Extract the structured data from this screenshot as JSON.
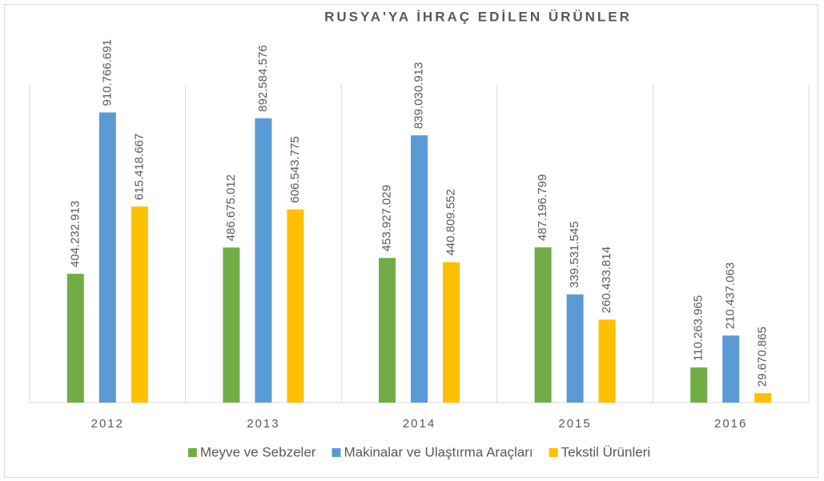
{
  "chart_data": {
    "type": "bar",
    "title": "RUSYA'YA İHRAÇ EDİLEN ÜRÜNLER",
    "categories": [
      "2012",
      "2013",
      "2014",
      "2015",
      "2016"
    ],
    "series": [
      {
        "name": "Meyve ve Sebzeler",
        "color": "#70ad47",
        "values": [
          404232913,
          486675012,
          453927029,
          487196799,
          110263965
        ],
        "value_labels": [
          "404.232.913",
          "486.675.012",
          "453.927.029",
          "487.196.799",
          "110.263.965"
        ]
      },
      {
        "name": "Makinalar ve Ulaştırma Araçları",
        "color": "#5b9bd5",
        "values": [
          910766691,
          892584576,
          839030913,
          339531545,
          210437063
        ],
        "value_labels": [
          "910.766.691",
          "892.584.576",
          "839.030.913",
          "339.531.545",
          "210.437.063"
        ]
      },
      {
        "name": "Tekstil Ürünleri",
        "color": "#ffc000",
        "values": [
          615418667,
          606543775,
          440809552,
          260433814,
          29670865
        ],
        "value_labels": [
          "615.418.667",
          "606.543.775",
          "440.809.552",
          "260.433.814",
          "29.670.865"
        ]
      }
    ],
    "ylim": [
      0,
      1000000000
    ],
    "legend": "bottom"
  }
}
